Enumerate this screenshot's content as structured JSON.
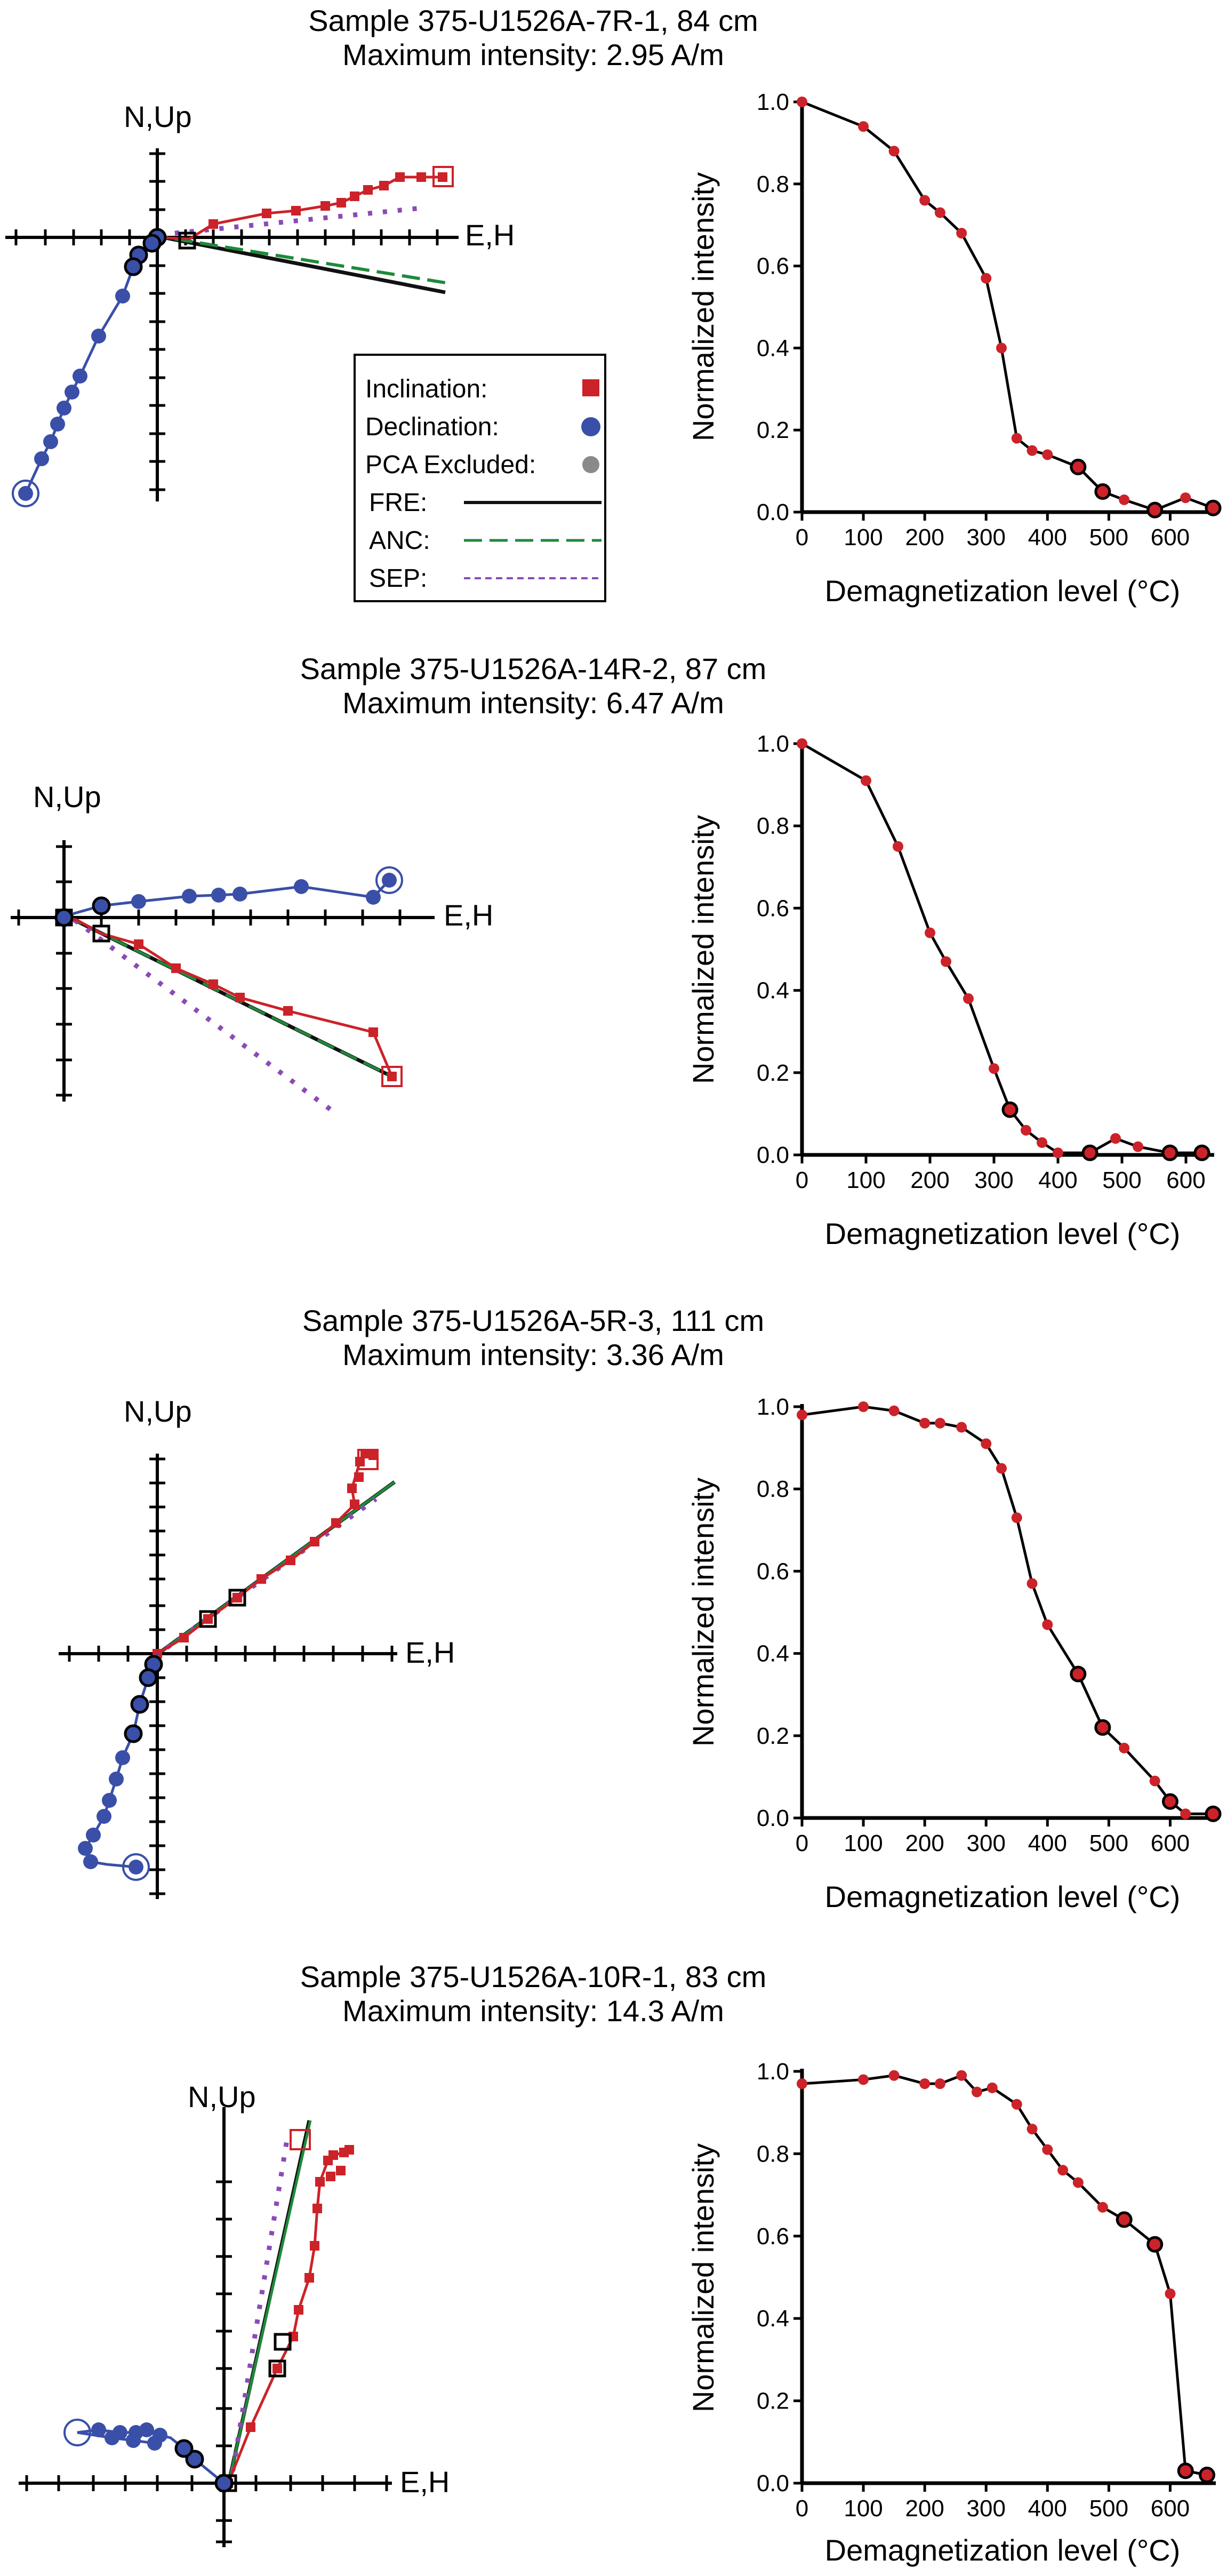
{
  "colors": {
    "inclination": "#cc2229",
    "declination": "#3a4fa8",
    "pca_excluded": "#8a8a8a",
    "fre": "#111111",
    "anc": "#1e8a3a",
    "sep": "#8a4bb5",
    "curve": "#000000"
  },
  "legend": {
    "inclination": "Inclination:",
    "declination": "Declination:",
    "pca_excluded": "PCA Excluded:",
    "fre": "FRE:",
    "anc": "ANC:",
    "sep": "SEP:"
  },
  "panels": [
    {
      "title": "Sample 375-U1526A-7R-1, 84 cm",
      "subtitle": "Maximum intensity: 2.95 A/m",
      "zijderveld": {
        "x_label": "E,H",
        "y_label": "N,Up"
      }
    },
    {
      "title": "Sample 375-U1526A-14R-2, 87 cm",
      "subtitle": "Maximum intensity: 6.47 A/m",
      "zijderveld": {
        "x_label": "E,H",
        "y_label": "N,Up"
      }
    },
    {
      "title": "Sample 375-U1526A-5R-3, 111 cm",
      "subtitle": "Maximum intensity: 3.36 A/m",
      "zijderveld": {
        "x_label": "E,H",
        "y_label": "N,Up"
      }
    },
    {
      "title": "Sample 375-U1526A-10R-1, 83 cm",
      "subtitle": "Maximum intensity: 14.3 A/m",
      "zijderveld": {
        "x_label": "E,H",
        "y_label": "N,Up"
      }
    }
  ],
  "chart_data": [
    {
      "type": "line",
      "xlabel": "Demagnetization level (°C)",
      "ylabel": "Normalized intensity",
      "xlim": [
        0,
        670
      ],
      "ylim": [
        0,
        1.0
      ],
      "xticks": [
        0,
        100,
        200,
        300,
        400,
        500,
        600
      ],
      "yticks": [
        0.0,
        0.2,
        0.4,
        0.6,
        0.8,
        1.0
      ],
      "x": [
        0,
        100,
        150,
        200,
        225,
        260,
        300,
        325,
        350,
        375,
        400,
        450,
        490,
        525,
        575,
        625,
        670
      ],
      "y": [
        1.0,
        0.94,
        0.88,
        0.76,
        0.73,
        0.68,
        0.57,
        0.4,
        0.18,
        0.15,
        0.14,
        0.11,
        0.05,
        0.03,
        0.005,
        0.035,
        0.01
      ],
      "highlighted": [
        0,
        0,
        0,
        0,
        0,
        0,
        0,
        0,
        0,
        0,
        0,
        1,
        1,
        0,
        1,
        0,
        1
      ]
    },
    {
      "type": "line",
      "xlabel": "Demagnetization level (°C)",
      "ylabel": "Normalized intensity",
      "xlim": [
        0,
        640
      ],
      "ylim": [
        0,
        1.0
      ],
      "xticks": [
        0,
        100,
        200,
        300,
        400,
        500,
        600
      ],
      "yticks": [
        0.0,
        0.2,
        0.4,
        0.6,
        0.8,
        1.0
      ],
      "x": [
        0,
        100,
        150,
        200,
        225,
        260,
        300,
        325,
        350,
        375,
        400,
        450,
        490,
        525,
        575,
        625
      ],
      "y": [
        1.0,
        0.91,
        0.75,
        0.54,
        0.47,
        0.38,
        0.21,
        0.11,
        0.06,
        0.03,
        0.005,
        0.005,
        0.04,
        0.02,
        0.005,
        0.005
      ],
      "highlighted": [
        0,
        0,
        0,
        0,
        0,
        0,
        0,
        1,
        0,
        0,
        0,
        1,
        0,
        0,
        1,
        1
      ]
    },
    {
      "type": "line",
      "xlabel": "Demagnetization level (°C)",
      "ylabel": "Normalized intensity",
      "xlim": [
        0,
        670
      ],
      "ylim": [
        0,
        1.0
      ],
      "xticks": [
        0,
        100,
        200,
        300,
        400,
        500,
        600
      ],
      "yticks": [
        0.0,
        0.2,
        0.4,
        0.6,
        0.8,
        1.0
      ],
      "x": [
        0,
        100,
        150,
        200,
        225,
        260,
        300,
        325,
        350,
        375,
        400,
        450,
        490,
        525,
        575,
        600,
        625,
        670
      ],
      "y": [
        0.98,
        1.0,
        0.99,
        0.96,
        0.96,
        0.95,
        0.91,
        0.85,
        0.73,
        0.57,
        0.47,
        0.35,
        0.22,
        0.17,
        0.09,
        0.04,
        0.01,
        0.01
      ],
      "highlighted": [
        0,
        0,
        0,
        0,
        0,
        0,
        0,
        0,
        0,
        0,
        0,
        1,
        1,
        0,
        0,
        1,
        0,
        1
      ]
    },
    {
      "type": "line",
      "xlabel": "Demagnetization level (°C)",
      "ylabel": "Normalized intensity",
      "xlim": [
        0,
        670
      ],
      "ylim": [
        0,
        1.0
      ],
      "xticks": [
        0,
        100,
        200,
        300,
        400,
        500,
        600
      ],
      "yticks": [
        0.0,
        0.2,
        0.4,
        0.6,
        0.8,
        1.0
      ],
      "x": [
        0,
        100,
        150,
        200,
        225,
        260,
        285,
        310,
        350,
        375,
        400,
        425,
        450,
        490,
        525,
        575,
        600,
        625,
        660
      ],
      "y": [
        0.97,
        0.98,
        0.99,
        0.97,
        0.97,
        0.99,
        0.95,
        0.96,
        0.92,
        0.86,
        0.81,
        0.76,
        0.73,
        0.67,
        0.64,
        0.58,
        0.46,
        0.03,
        0.02
      ],
      "highlighted": [
        0,
        0,
        0,
        0,
        0,
        0,
        0,
        0,
        0,
        0,
        0,
        0,
        0,
        0,
        1,
        1,
        0,
        1,
        1
      ]
    }
  ]
}
